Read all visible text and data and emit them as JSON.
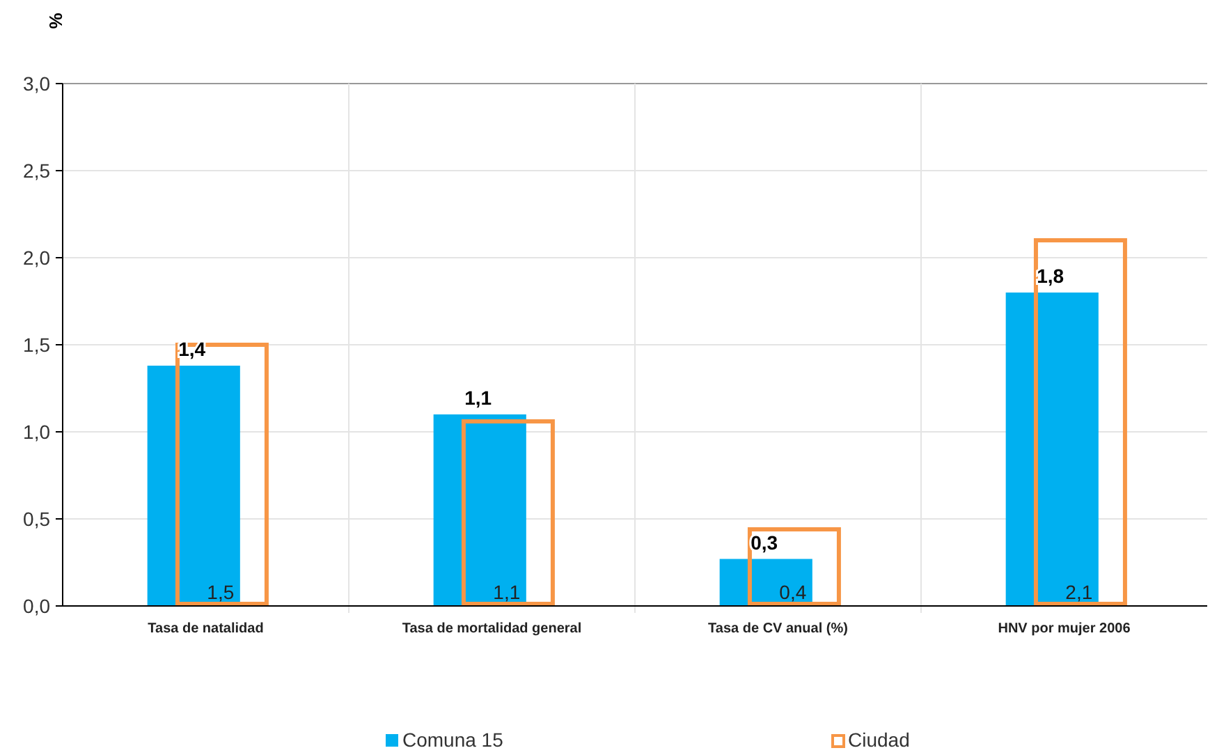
{
  "chart_data": {
    "type": "bar",
    "ylabel": "%",
    "categories": [
      "Tasa de natalidad",
      "Tasa de mortalidad general",
      "Tasa de CV anual (%)",
      "HNV por mujer 2006"
    ],
    "series": [
      {
        "name": "Comuna 15",
        "color": "#00b0f0",
        "values": [
          1.38,
          1.1,
          0.27,
          1.8
        ],
        "value_labels": [
          "1,4",
          "1,1",
          "0,3",
          "1,8"
        ]
      },
      {
        "name": "Ciudad",
        "color": "#f79646",
        "values": [
          1.5,
          1.06,
          0.44,
          2.1
        ],
        "value_labels": [
          "1,5",
          "1,1",
          "0,4",
          "2,1"
        ]
      }
    ],
    "ylim": [
      0,
      3
    ],
    "yticks": [
      {
        "value": 0,
        "label": "0,0"
      },
      {
        "value": 0.5,
        "label": "0,5"
      },
      {
        "value": 1,
        "label": "1,0"
      },
      {
        "value": 1.5,
        "label": "1,5"
      },
      {
        "value": 2,
        "label": "2,0"
      },
      {
        "value": 2.5,
        "label": "2,5"
      },
      {
        "value": 3,
        "label": "3,0"
      }
    ],
    "grid": true,
    "legend": "bottom"
  }
}
